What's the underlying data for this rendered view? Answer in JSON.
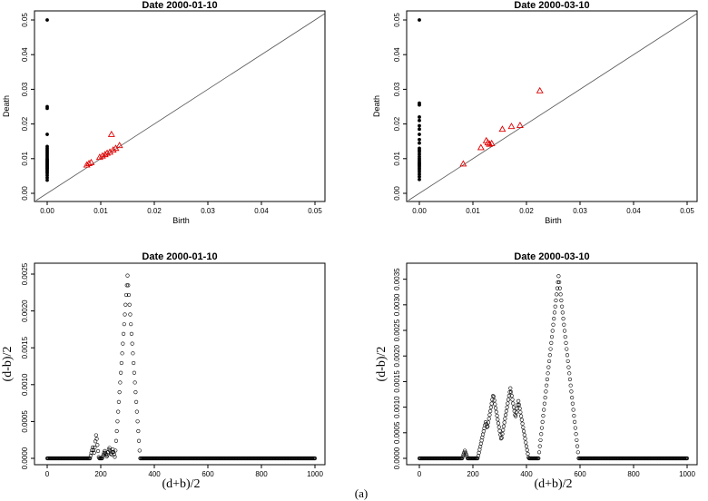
{
  "caption": "(a)",
  "chart_data": [
    {
      "type": "scatter",
      "title": "Date  2000-01-10",
      "xlabel": "Birth",
      "ylabel": "Death",
      "xlim": [
        0,
        0.05
      ],
      "ylim": [
        0,
        0.05
      ],
      "xticks": [
        "0.00",
        "0.01",
        "0.02",
        "0.03",
        "0.04",
        "0.05"
      ],
      "yticks": [
        "0.00",
        "0.01",
        "0.02",
        "0.03",
        "0.04",
        "0.05"
      ],
      "diagonal": true,
      "series": [
        {
          "name": "dim0",
          "marker": "dot",
          "color": "#000000",
          "x": [
            0,
            0,
            0,
            0,
            0,
            0,
            0,
            0,
            0,
            0,
            0,
            0,
            0,
            0,
            0,
            0,
            0,
            0,
            0,
            0,
            0,
            0,
            0,
            0,
            0,
            0,
            0,
            0
          ],
          "y": [
            0.05,
            0.025,
            0.0245,
            0.017,
            0.0135,
            0.013,
            0.0125,
            0.012,
            0.0115,
            0.011,
            0.0105,
            0.01,
            0.0097,
            0.0094,
            0.0091,
            0.0088,
            0.0085,
            0.0082,
            0.0079,
            0.0076,
            0.0073,
            0.007,
            0.0066,
            0.0062,
            0.0058,
            0.0052,
            0.0045,
            0.0038
          ]
        },
        {
          "name": "dim1",
          "marker": "triangle",
          "color": "#e00000",
          "x": [
            0.0074,
            0.0078,
            0.0082,
            0.0098,
            0.0103,
            0.0108,
            0.0112,
            0.0117,
            0.012,
            0.0123,
            0.0128,
            0.0135
          ],
          "y": [
            0.0082,
            0.0086,
            0.0089,
            0.0104,
            0.0108,
            0.0112,
            0.0116,
            0.0119,
            0.017,
            0.0125,
            0.013,
            0.0138
          ]
        }
      ]
    },
    {
      "type": "scatter",
      "title": "Date  2000-03-10",
      "xlabel": "Birth",
      "ylabel": "Death",
      "xlim": [
        0,
        0.05
      ],
      "ylim": [
        0,
        0.05
      ],
      "xticks": [
        "0.00",
        "0.01",
        "0.02",
        "0.03",
        "0.04",
        "0.05"
      ],
      "yticks": [
        "0.00",
        "0.01",
        "0.02",
        "0.03",
        "0.04",
        "0.05"
      ],
      "diagonal": true,
      "series": [
        {
          "name": "dim0",
          "marker": "dot",
          "color": "#000000",
          "x": [
            0,
            0,
            0,
            0,
            0,
            0,
            0,
            0,
            0,
            0,
            0,
            0,
            0,
            0,
            0,
            0,
            0,
            0,
            0,
            0,
            0,
            0,
            0,
            0,
            0,
            0,
            0
          ],
          "y": [
            0.05,
            0.026,
            0.0255,
            0.022,
            0.021,
            0.0195,
            0.0185,
            0.017,
            0.0155,
            0.0145,
            0.013,
            0.0125,
            0.012,
            0.0113,
            0.0106,
            0.01,
            0.0095,
            0.009,
            0.0086,
            0.0082,
            0.0078,
            0.0073,
            0.0068,
            0.0062,
            0.0055,
            0.0048,
            0.004
          ]
        },
        {
          "name": "dim1",
          "marker": "triangle",
          "color": "#e00000",
          "x": [
            0.0082,
            0.0115,
            0.0125,
            0.0128,
            0.0131,
            0.0135,
            0.0155,
            0.0172,
            0.0188,
            0.0225
          ],
          "y": [
            0.0085,
            0.0132,
            0.0152,
            0.0146,
            0.0142,
            0.0144,
            0.0185,
            0.0193,
            0.0196,
            0.0296
          ]
        }
      ]
    },
    {
      "type": "line",
      "marker": "circle",
      "title": "Date  2000-01-10",
      "xlabel": "(d+b)/2",
      "ylabel": "(d-b)/2",
      "xlim": [
        0,
        1000
      ],
      "ylim": [
        0,
        0.0025
      ],
      "xticks": [
        "0",
        "200",
        "400",
        "600",
        "800",
        "1000"
      ],
      "yticks": [
        "0.0000",
        "0.0005",
        "0.0010",
        "0.0015",
        "0.0020",
        "0.0025"
      ],
      "peaks": [
        {
          "center": 170,
          "height": 0.00015,
          "halfwidth": 10
        },
        {
          "center": 183,
          "height": 0.00033,
          "halfwidth": 10
        },
        {
          "center": 215,
          "height": 0.0001,
          "halfwidth": 10
        },
        {
          "center": 232,
          "height": 0.00015,
          "halfwidth": 10
        },
        {
          "center": 245,
          "height": 0.00012,
          "halfwidth": 9
        },
        {
          "center": 300,
          "height": 0.00248,
          "halfwidth": 47
        }
      ]
    },
    {
      "type": "line",
      "marker": "circle",
      "title": "Date  2000-03-10",
      "xlabel": "(d+b)/2",
      "ylabel": "(d-b)/2",
      "xlim": [
        0,
        1000
      ],
      "ylim": [
        0,
        0.0036
      ],
      "xticks": [
        "0",
        "200",
        "400",
        "600",
        "800",
        "1000"
      ],
      "yticks": [
        "0.0000",
        "0.0005",
        "0.0010",
        "0.0015",
        "0.0020",
        "0.0025",
        "0.0030",
        "0.0035"
      ],
      "peaks": [
        {
          "center": 170,
          "height": 0.00015,
          "halfwidth": 10
        },
        {
          "center": 248,
          "height": 0.00072,
          "halfwidth": 30
        },
        {
          "center": 276,
          "height": 0.00125,
          "halfwidth": 42
        },
        {
          "center": 340,
          "height": 0.00137,
          "halfwidth": 46
        },
        {
          "center": 370,
          "height": 0.00112,
          "halfwidth": 38
        },
        {
          "center": 520,
          "height": 0.00356,
          "halfwidth": 75
        }
      ]
    }
  ]
}
